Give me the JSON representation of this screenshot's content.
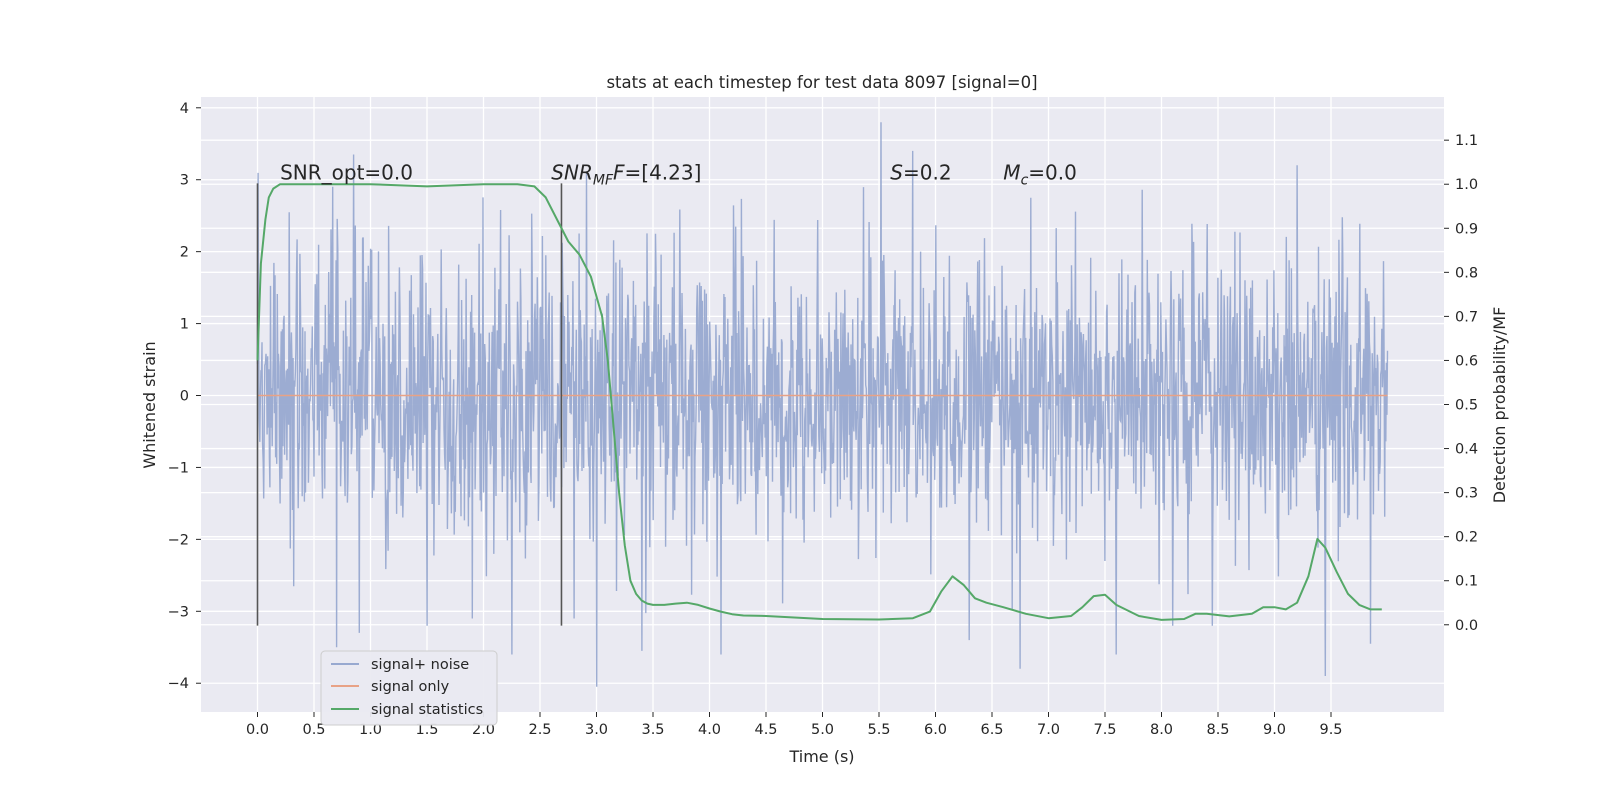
{
  "chart_data": {
    "type": "line",
    "title": "stats at each timestep for test data 8097 [signal=0]",
    "xlabel": "Time (s)",
    "ylabel": "Whitened strain",
    "ylabel_right": "Detection probability/MF",
    "xlim": [
      -0.5,
      10.5
    ],
    "ylim": [
      -4.4,
      4.15
    ],
    "ylim_right": [
      -0.198,
      1.198
    ],
    "x_ticks": [
      0.0,
      0.5,
      1.0,
      1.5,
      2.0,
      2.5,
      3.0,
      3.5,
      4.0,
      4.5,
      5.0,
      5.5,
      6.0,
      6.5,
      7.0,
      7.5,
      8.0,
      8.5,
      9.0,
      9.5
    ],
    "x_tick_labels": [
      "0.0",
      "0.5",
      "1.0",
      "1.5",
      "2.0",
      "2.5",
      "3.0",
      "3.5",
      "4.0",
      "4.5",
      "5.0",
      "5.5",
      "6.0",
      "6.5",
      "7.0",
      "7.5",
      "8.0",
      "8.5",
      "9.0",
      "9.5"
    ],
    "y_ticks": [
      -4,
      -3,
      -2,
      -1,
      0,
      1,
      2,
      3,
      4
    ],
    "y_tick_labels": [
      "−4",
      "−3",
      "−2",
      "−1",
      "0",
      "1",
      "2",
      "3",
      "4"
    ],
    "y_right_ticks": [
      0.0,
      0.1,
      0.2,
      0.3,
      0.4,
      0.5,
      0.6,
      0.7,
      0.8,
      0.9,
      1.0,
      1.1
    ],
    "y_right_tick_labels": [
      "0.0",
      "0.1",
      "0.2",
      "0.3",
      "0.4",
      "0.5",
      "0.6",
      "0.7",
      "0.8",
      "0.9",
      "1.0",
      "1.1"
    ],
    "grid": true,
    "legend_position": "lower-left",
    "vlines": [
      {
        "x": 0.0,
        "ymin": -3.2,
        "ymax": 2.95
      },
      {
        "x": 2.69,
        "ymin": -3.2,
        "ymax": 2.95
      }
    ],
    "annotations": [
      {
        "id": "snr-opt",
        "text": "SNR_opt=0.0",
        "x": 0.2,
        "y": 3.0
      },
      {
        "id": "snr-mf",
        "label": "SNR",
        "sub": "MF",
        "rest": "F=[4.23]",
        "x": 2.6,
        "y": 3.0
      },
      {
        "id": "s",
        "label": "S",
        "rest": "=0.2",
        "x": 5.6,
        "y": 3.0
      },
      {
        "id": "mc",
        "label": "M",
        "sub": "c",
        "rest": "=0.0",
        "x": 6.6,
        "y": 3.0
      }
    ],
    "series": [
      {
        "name": "signal+ noise",
        "color": "#98a9d0",
        "kind": "noise",
        "x_range": [
          0.0,
          10.0
        ],
        "amplitude_std": 1.0,
        "extremes": [
          {
            "x": 0.7,
            "y": -3.5
          },
          {
            "x": 0.9,
            "y": -3.3
          },
          {
            "x": 1.9,
            "y": -3.1
          },
          {
            "x": 2.25,
            "y": -3.6
          },
          {
            "x": 3.0,
            "y": -4.05
          },
          {
            "x": 3.4,
            "y": -3.55
          },
          {
            "x": 4.1,
            "y": -3.6
          },
          {
            "x": 5.52,
            "y": 3.8
          },
          {
            "x": 6.3,
            "y": -3.4
          },
          {
            "x": 6.75,
            "y": -3.8
          },
          {
            "x": 7.6,
            "y": -3.6
          },
          {
            "x": 9.45,
            "y": -3.9
          },
          {
            "x": 9.85,
            "y": -3.45
          },
          {
            "x": 1.5,
            "y": -3.2
          },
          {
            "x": 5.8,
            "y": 3.4
          },
          {
            "x": 0.85,
            "y": 3.35
          },
          {
            "x": 2.8,
            "y": -3.1
          },
          {
            "x": 8.1,
            "y": -3.2
          }
        ]
      },
      {
        "name": "signal only",
        "color": "#e8a286",
        "x": [
          0.0,
          10.0
        ],
        "y": [
          0.0,
          0.0
        ]
      },
      {
        "name": "signal statistics",
        "color": "#55a868",
        "axis": "right",
        "x": [
          0.0,
          0.03,
          0.07,
          0.1,
          0.14,
          0.2,
          0.3,
          0.5,
          1.0,
          1.5,
          2.0,
          2.3,
          2.45,
          2.55,
          2.65,
          2.75,
          2.85,
          2.95,
          3.05,
          3.1,
          3.15,
          3.2,
          3.25,
          3.3,
          3.35,
          3.4,
          3.45,
          3.5,
          3.6,
          3.7,
          3.8,
          3.9,
          4.0,
          4.1,
          4.2,
          4.3,
          4.5,
          5.0,
          5.5,
          5.8,
          5.95,
          6.05,
          6.15,
          6.25,
          6.35,
          6.45,
          6.6,
          6.8,
          7.0,
          7.2,
          7.3,
          7.4,
          7.5,
          7.6,
          7.8,
          8.0,
          8.2,
          8.3,
          8.4,
          8.6,
          8.8,
          8.9,
          9.0,
          9.1,
          9.2,
          9.3,
          9.38,
          9.45,
          9.55,
          9.65,
          9.75,
          9.85,
          9.95
        ],
        "y": [
          0.6,
          0.82,
          0.92,
          0.97,
          0.99,
          1.0,
          1.0,
          1.0,
          1.0,
          0.995,
          1.0,
          1.0,
          0.995,
          0.97,
          0.92,
          0.87,
          0.84,
          0.79,
          0.7,
          0.6,
          0.45,
          0.3,
          0.18,
          0.1,
          0.07,
          0.055,
          0.048,
          0.045,
          0.045,
          0.048,
          0.05,
          0.045,
          0.037,
          0.03,
          0.024,
          0.021,
          0.02,
          0.013,
          0.012,
          0.015,
          0.03,
          0.075,
          0.11,
          0.09,
          0.06,
          0.05,
          0.04,
          0.025,
          0.015,
          0.02,
          0.04,
          0.065,
          0.068,
          0.045,
          0.02,
          0.011,
          0.013,
          0.025,
          0.025,
          0.019,
          0.025,
          0.04,
          0.04,
          0.035,
          0.05,
          0.11,
          0.195,
          0.175,
          0.12,
          0.07,
          0.045,
          0.035,
          0.035
        ]
      }
    ]
  }
}
